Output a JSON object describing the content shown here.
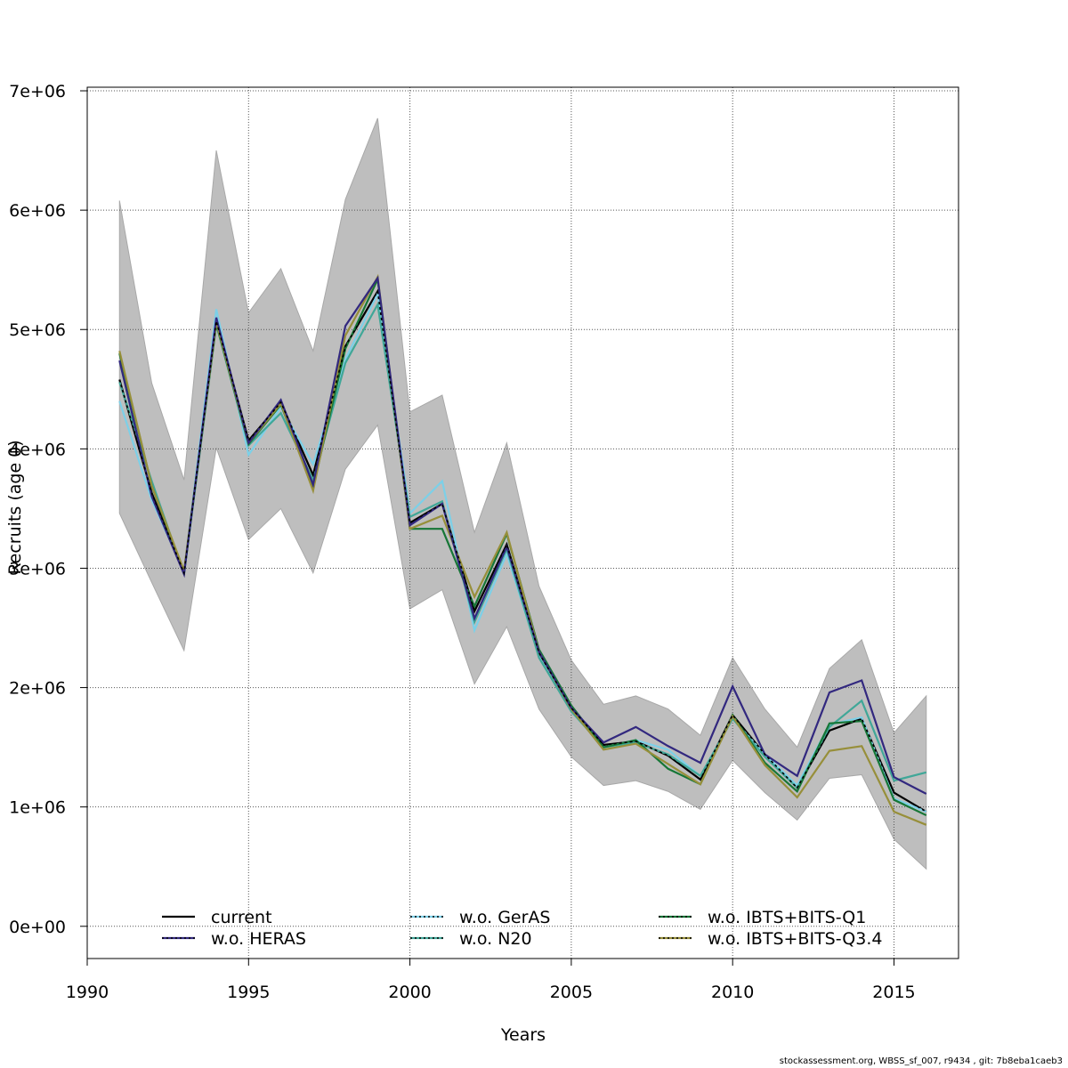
{
  "chart_data": {
    "type": "line",
    "title": "",
    "xlabel": "Years",
    "ylabel": "Recruits (age 0)",
    "xlim": [
      1990,
      2017
    ],
    "ylim": [
      -270000,
      7030000
    ],
    "x_ticks": [
      1990,
      1995,
      2000,
      2005,
      2010,
      2015
    ],
    "y_ticks": [
      0,
      1000000,
      2000000,
      3000000,
      4000000,
      5000000,
      6000000,
      7000000
    ],
    "y_tick_labels": [
      "0e+00",
      "1e+06",
      "2e+06",
      "3e+06",
      "4e+06",
      "5e+06",
      "6e+06",
      "7e+06"
    ],
    "grid": true,
    "legend_position": "bottom",
    "x": [
      1991,
      1992,
      1993,
      1994,
      1995,
      1996,
      1997,
      1998,
      1999,
      2000,
      2001,
      2002,
      2003,
      2004,
      2005,
      2006,
      2007,
      2008,
      2009,
      2010,
      2011,
      2012,
      2013,
      2014,
      2015,
      2016
    ],
    "band": {
      "lower": [
        3460000,
        2880000,
        2310000,
        4010000,
        3240000,
        3500000,
        2960000,
        3830000,
        4200000,
        2660000,
        2820000,
        2030000,
        2510000,
        1820000,
        1420000,
        1180000,
        1220000,
        1130000,
        980000,
        1390000,
        1120000,
        890000,
        1240000,
        1270000,
        730000,
        480000
      ],
      "upper": [
        6080000,
        4550000,
        3740000,
        6500000,
        5140000,
        5510000,
        4820000,
        6090000,
        6770000,
        4310000,
        4450000,
        3300000,
        4050000,
        2850000,
        2230000,
        1860000,
        1930000,
        1820000,
        1600000,
        2250000,
        1820000,
        1500000,
        2160000,
        2400000,
        1620000,
        1930000
      ],
      "color": "#bebebe"
    },
    "series": [
      {
        "name": "current",
        "color": "#000000",
        "dash": "solid",
        "values": [
          4580000,
          3630000,
          2960000,
          5070000,
          4070000,
          4390000,
          3780000,
          4860000,
          5320000,
          3380000,
          3540000,
          2640000,
          3200000,
          2290000,
          1830000,
          1520000,
          1550000,
          1430000,
          1230000,
          1770000,
          1440000,
          1160000,
          1640000,
          1740000,
          1120000,
          960000
        ]
      },
      {
        "name": "w.o. HERAS",
        "color": "#32287f",
        "dash": "dotted",
        "values": [
          4740000,
          3600000,
          2950000,
          5100000,
          4050000,
          4410000,
          3700000,
          5030000,
          5430000,
          3360000,
          3540000,
          2580000,
          3180000,
          2300000,
          1830000,
          1540000,
          1670000,
          1510000,
          1370000,
          2010000,
          1440000,
          1260000,
          1960000,
          2060000,
          1250000,
          1110000
        ]
      },
      {
        "name": "w.o. GerAS",
        "color": "#7cd0e8",
        "dash": "dotted",
        "values": [
          4400000,
          3570000,
          2970000,
          5170000,
          3950000,
          4350000,
          3870000,
          4750000,
          5300000,
          3460000,
          3730000,
          2480000,
          3120000,
          2260000,
          1800000,
          1500000,
          1560000,
          1480000,
          1260000,
          1740000,
          1440000,
          1180000,
          1690000,
          1750000,
          1070000,
          960000
        ]
      },
      {
        "name": "w.o. N20",
        "color": "#40a798",
        "dash": "dotted",
        "values": [
          4560000,
          3730000,
          2950000,
          5040000,
          4030000,
          4300000,
          3740000,
          4720000,
          5210000,
          3430000,
          3560000,
          2550000,
          3160000,
          2250000,
          1800000,
          1500000,
          1540000,
          1440000,
          1260000,
          1740000,
          1420000,
          1160000,
          1670000,
          1890000,
          1220000,
          1290000
        ]
      },
      {
        "name": "w.o. IBTS+BITS-Q1",
        "color": "#167636",
        "dash": "dotted",
        "values": [
          4800000,
          3690000,
          2960000,
          5050000,
          4040000,
          4370000,
          3680000,
          4840000,
          5420000,
          3330000,
          3330000,
          2680000,
          3290000,
          2320000,
          1850000,
          1500000,
          1560000,
          1320000,
          1190000,
          1770000,
          1370000,
          1130000,
          1700000,
          1720000,
          1060000,
          930000
        ]
      },
      {
        "name": "w.o. IBTS+BITS-Q3.4",
        "color": "#978f3a",
        "dash": "dotted",
        "values": [
          4820000,
          3690000,
          2980000,
          5060000,
          4050000,
          4380000,
          3650000,
          4950000,
          5440000,
          3330000,
          3440000,
          2760000,
          3300000,
          2300000,
          1820000,
          1480000,
          1530000,
          1360000,
          1190000,
          1760000,
          1350000,
          1080000,
          1470000,
          1510000,
          960000,
          850000
        ]
      }
    ]
  },
  "footer": "stockassessment.org, WBSS_sf_007, r9434 , git: 7b8eba1caeb3"
}
